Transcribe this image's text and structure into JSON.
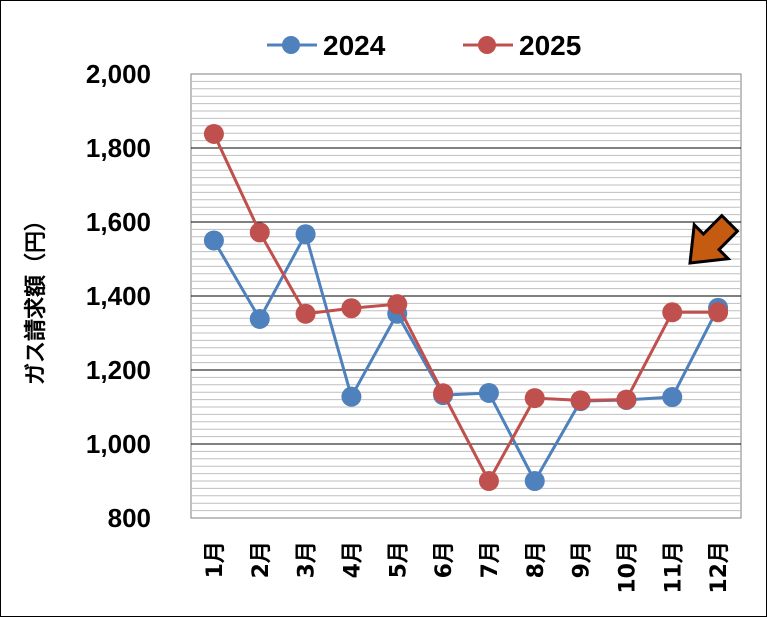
{
  "chart_data": {
    "type": "line",
    "title": "",
    "xlabel": "",
    "ylabel": "ガス請求額（円）",
    "ylim": [
      800,
      2000
    ],
    "y_ticks": [
      "800",
      "1,000",
      "1,200",
      "1,400",
      "1,600",
      "1,800",
      "2,000"
    ],
    "categories": [
      "1月",
      "2月",
      "3月",
      "4月",
      "5月",
      "6月",
      "7月",
      "8月",
      "9月",
      "10月",
      "11月",
      "12月"
    ],
    "series": [
      {
        "name": "2024",
        "color": "#4F81BD",
        "values": [
          1550,
          1338,
          1567,
          1128,
          1352,
          1132,
          1138,
          900,
          1116,
          1119,
          1127,
          1368
        ]
      },
      {
        "name": "2025",
        "color": "#C0504D",
        "values": [
          1838,
          1572,
          1352,
          1367,
          1378,
          1137,
          900,
          1124,
          1118,
          1120,
          1356,
          1356
        ]
      }
    ],
    "grid": true,
    "legend_position": "top",
    "annotation": {
      "type": "arrow",
      "icon": "arrow-down-left-icon",
      "color": "#C55A11",
      "points_to": "12月"
    }
  }
}
